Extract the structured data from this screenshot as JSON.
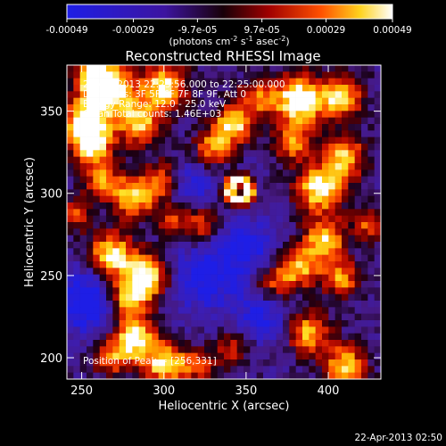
{
  "chart_data": {
    "type": "heatmap",
    "title": "Reconstructed RHESSI Image",
    "xlabel": "Heliocentric X (arcsec)",
    "ylabel": "Heliocentric Y (arcsec)",
    "xlim": [
      241,
      432
    ],
    "ylim": [
      187,
      378
    ],
    "x_ticks": [
      250,
      300,
      350,
      400
    ],
    "y_ticks": [
      200,
      250,
      300,
      350
    ],
    "colorbar": {
      "ticks": [
        "-0.00049",
        "-0.00029",
        "-9.7e-05",
        "9.7e-05",
        "0.00029",
        "0.00049"
      ],
      "tick_values": [
        -0.00049,
        -0.00029,
        -9.7e-05,
        9.7e-05,
        0.00029,
        0.00049
      ],
      "range": [
        -0.00049,
        0.00049
      ],
      "label_prefix": "(photons cm",
      "label_exp1": "-2",
      "label_mid1": " s",
      "label_exp2": "-1",
      "label_mid2": " asec",
      "label_exp3": "-2",
      "label_suffix": ")"
    },
    "annotations": [
      "21-Apr-2013 22:23:56.000 to 22:25:00.000",
      "Detectors: 3F 5F 6F 7F 8F 9F, Att 0",
      "Energy Range: 12.0 - 25.0 keV",
      "Clean     Total counts: 1.46E+03"
    ],
    "peak_label": "Position of Peak = [256,331]",
    "peak": [
      256,
      331
    ],
    "blobs": [
      {
        "x": 256,
        "y": 331,
        "v": 1.0,
        "s": 9
      },
      {
        "x": 268,
        "y": 362,
        "v": 0.95,
        "s": 10
      },
      {
        "x": 252,
        "y": 346,
        "v": 0.85,
        "s": 9
      },
      {
        "x": 285,
        "y": 342,
        "v": 0.8,
        "s": 9
      },
      {
        "x": 300,
        "y": 365,
        "v": 0.9,
        "s": 10
      },
      {
        "x": 258,
        "y": 372,
        "v": 0.8,
        "s": 9
      },
      {
        "x": 282,
        "y": 298,
        "v": 0.85,
        "s": 9
      },
      {
        "x": 262,
        "y": 308,
        "v": 0.6,
        "s": 8
      },
      {
        "x": 300,
        "y": 308,
        "v": 0.6,
        "s": 8
      },
      {
        "x": 268,
        "y": 262,
        "v": 0.9,
        "s": 10
      },
      {
        "x": 290,
        "y": 250,
        "v": 0.95,
        "s": 9
      },
      {
        "x": 278,
        "y": 236,
        "v": 0.85,
        "s": 9
      },
      {
        "x": 282,
        "y": 212,
        "v": 0.95,
        "s": 9
      },
      {
        "x": 300,
        "y": 196,
        "v": 0.85,
        "s": 9
      },
      {
        "x": 268,
        "y": 200,
        "v": 0.55,
        "s": 8
      },
      {
        "x": 322,
        "y": 280,
        "v": 0.55,
        "s": 8
      },
      {
        "x": 330,
        "y": 328,
        "v": 0.65,
        "s": 8
      },
      {
        "x": 342,
        "y": 342,
        "v": 0.85,
        "s": 8
      },
      {
        "x": 356,
        "y": 358,
        "v": 0.55,
        "s": 8
      },
      {
        "x": 382,
        "y": 356,
        "v": 1.0,
        "s": 11
      },
      {
        "x": 408,
        "y": 358,
        "v": 0.8,
        "s": 9
      },
      {
        "x": 378,
        "y": 330,
        "v": 0.6,
        "s": 8
      },
      {
        "x": 395,
        "y": 303,
        "v": 0.95,
        "s": 10
      },
      {
        "x": 410,
        "y": 322,
        "v": 0.75,
        "s": 9
      },
      {
        "x": 398,
        "y": 272,
        "v": 0.8,
        "s": 9
      },
      {
        "x": 382,
        "y": 255,
        "v": 0.75,
        "s": 9
      },
      {
        "x": 408,
        "y": 248,
        "v": 0.65,
        "s": 8
      },
      {
        "x": 366,
        "y": 245,
        "v": 0.5,
        "s": 8
      },
      {
        "x": 388,
        "y": 215,
        "v": 0.75,
        "s": 9
      },
      {
        "x": 410,
        "y": 195,
        "v": 0.8,
        "s": 9
      },
      {
        "x": 342,
        "y": 206,
        "v": 0.45,
        "s": 8
      },
      {
        "x": 320,
        "y": 196,
        "v": 0.55,
        "s": 7
      },
      {
        "x": 245,
        "y": 287,
        "v": 0.5,
        "s": 7
      },
      {
        "x": 425,
        "y": 282,
        "v": 0.55,
        "s": 7
      },
      {
        "x": 305,
        "y": 284,
        "v": 0.45,
        "s": 7
      }
    ],
    "ring": {
      "x": 346,
      "y": 302,
      "r": 6,
      "v": 0.7,
      "s": 3
    },
    "dips": [
      {
        "x": 255,
        "y": 235,
        "v": 0.45,
        "s": 14
      },
      {
        "x": 325,
        "y": 250,
        "v": 0.35,
        "s": 16
      },
      {
        "x": 352,
        "y": 268,
        "v": 0.3,
        "s": 12
      },
      {
        "x": 315,
        "y": 305,
        "v": 0.3,
        "s": 10
      },
      {
        "x": 360,
        "y": 225,
        "v": 0.3,
        "s": 12
      }
    ]
  },
  "timestamp": "22-Apr-2013 02:50"
}
